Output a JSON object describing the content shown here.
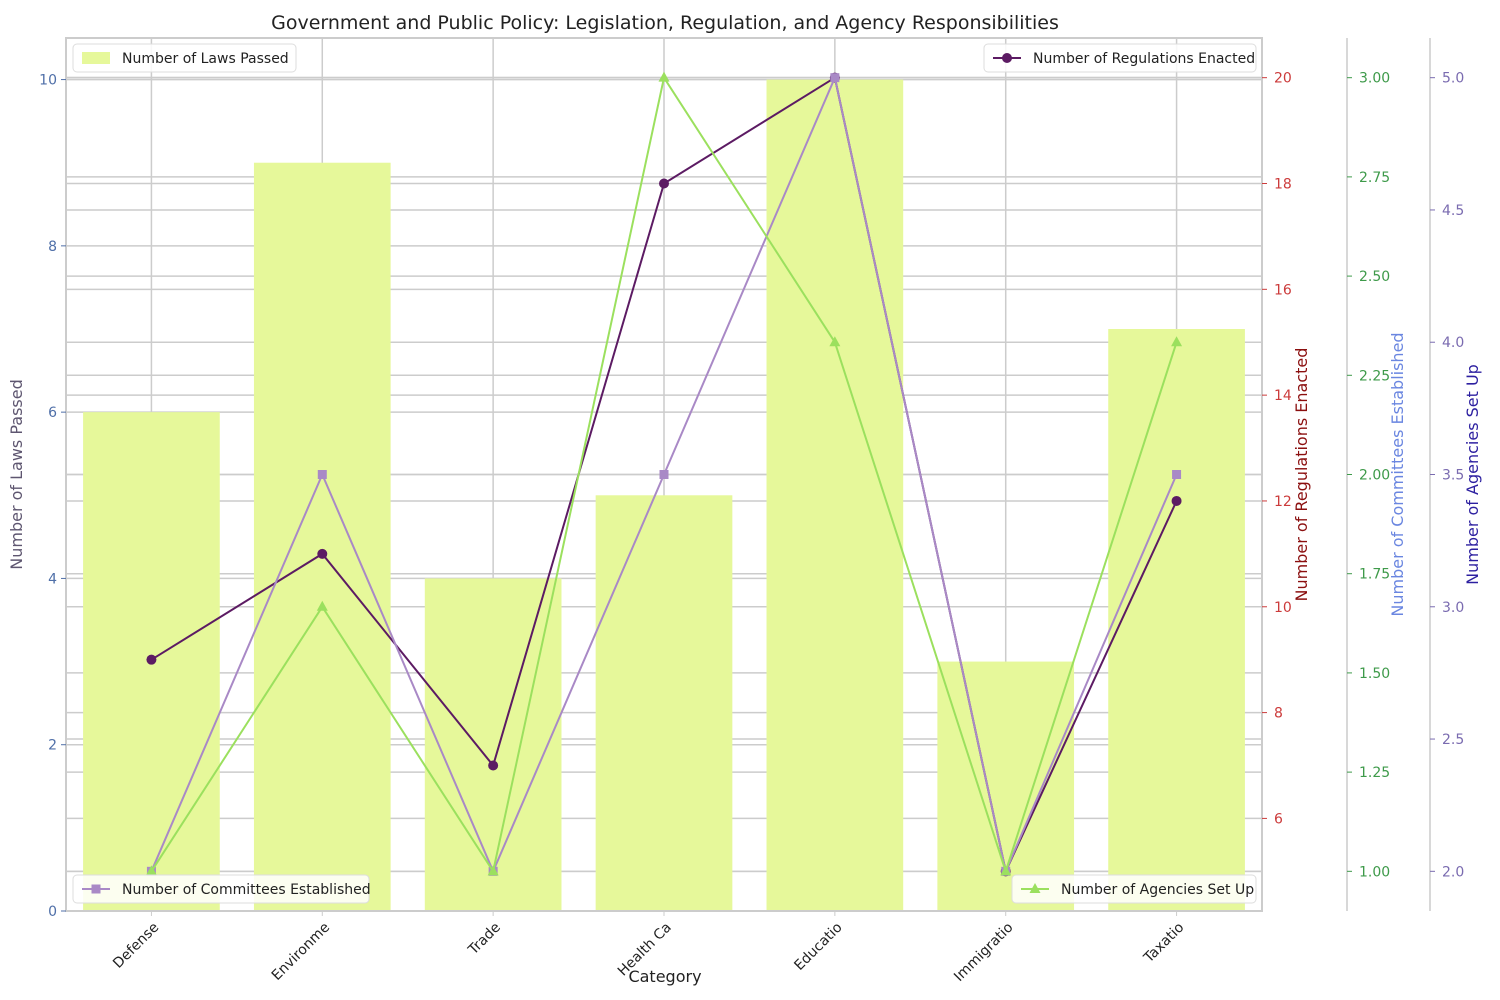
{
  "chart_data": {
    "type": "bar",
    "title": "Government and Public Policy: Legislation, Regulation, and Agency Responsibilities",
    "xlabel": "Category",
    "categories": [
      "Defense",
      "Environme",
      "Trade",
      "Health Ca",
      "Educatio",
      "Immigratio",
      "Taxatio"
    ],
    "grid": true,
    "series": [
      {
        "name": "Number of Laws Passed",
        "type": "bar",
        "axis": "y",
        "color": "#e6f89a",
        "legend_position": "top-left",
        "values": [
          6,
          9,
          4,
          5,
          10,
          3,
          7
        ]
      },
      {
        "name": "Number of Regulations Enacted",
        "type": "line",
        "marker": "circle",
        "axis": "y2",
        "color": "#5c1b63",
        "legend_position": "top-right",
        "values": [
          9,
          11,
          7,
          18,
          20,
          5,
          12
        ]
      },
      {
        "name": "Number of Committees Established",
        "type": "line",
        "marker": "square",
        "axis": "y3",
        "color": "#a989c6",
        "legend_position": "bottom-left",
        "values": [
          1,
          2,
          1,
          2,
          3,
          1,
          2
        ]
      },
      {
        "name": "Number of Agencies Set Up",
        "type": "line",
        "marker": "triangle",
        "axis": "y4",
        "color": "#9be05e",
        "legend_position": "bottom-right",
        "values": [
          2,
          3,
          2,
          5,
          4,
          2,
          4
        ]
      }
    ],
    "axes": {
      "y": {
        "label": "Number of Laws Passed",
        "range": [
          0,
          10.5
        ],
        "ticks": [
          "0",
          "2",
          "4",
          "6",
          "8",
          "10"
        ],
        "tick_color": "#4f6fa8",
        "label_color": "#5e5670"
      },
      "y2": {
        "label": "Number of Regulations Enacted",
        "range": [
          4.25,
          20.75
        ],
        "ticks": [
          "6",
          "8",
          "10",
          "12",
          "14",
          "16",
          "18",
          "20"
        ],
        "tick_color": "#cc3b3b",
        "label_color": "#8b0f0f"
      },
      "y3": {
        "label": "Number of Committees Established",
        "range": [
          0.9,
          3.1
        ],
        "ticks": [
          "1.00",
          "1.25",
          "1.50",
          "1.75",
          "2.00",
          "2.25",
          "2.50",
          "2.75",
          "3.00"
        ],
        "tick_color": "#3e9a4a",
        "label_color": "#6a86e0"
      },
      "y4": {
        "label": "Number of Agencies Set Up",
        "range": [
          1.85,
          5.15
        ],
        "ticks": [
          "2.0",
          "2.5",
          "3.0",
          "3.5",
          "4.0",
          "4.5",
          "5.0"
        ],
        "tick_color": "#7a6bb0",
        "label_color": "#2c1fa0"
      }
    }
  }
}
